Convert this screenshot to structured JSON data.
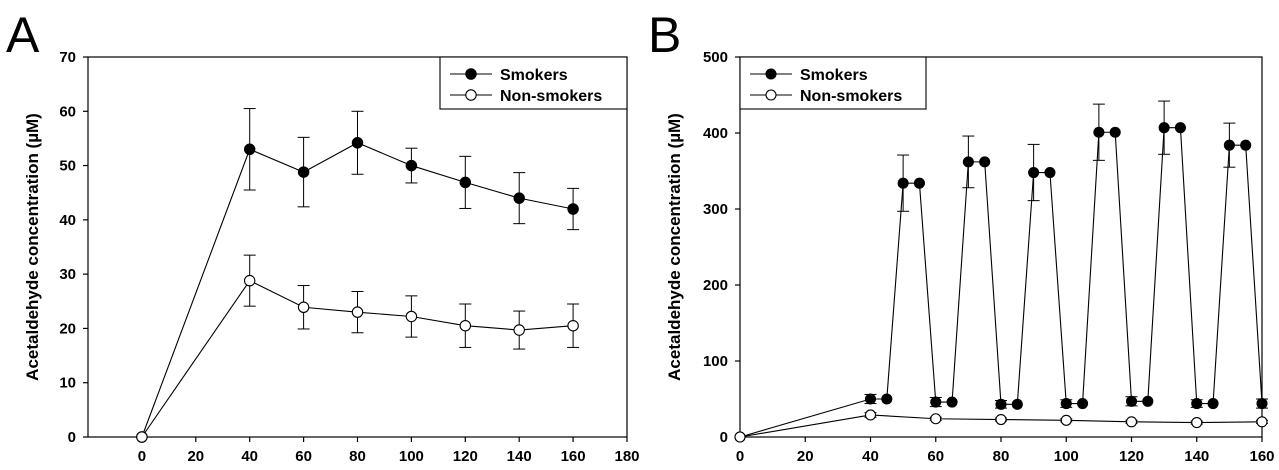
{
  "chart_data": [
    {
      "panel": "A",
      "type": "line",
      "title": "",
      "xlabel": "",
      "ylabel": "Acetaldehyde concentration (µM)",
      "xlim": [
        -20,
        180
      ],
      "ylim": [
        0,
        70
      ],
      "xticks": [
        0,
        20,
        40,
        60,
        80,
        100,
        120,
        140,
        160,
        180
      ],
      "yticks": [
        0,
        10,
        20,
        30,
        40,
        50,
        60,
        70
      ],
      "legend_position": "top-right",
      "grid": false,
      "series": [
        {
          "name": "Smokers",
          "marker": "filled-circle",
          "color": "#000000",
          "x": [
            0,
            40,
            60,
            80,
            100,
            120,
            140,
            160
          ],
          "y": [
            0,
            53,
            48.8,
            54.2,
            50,
            46.9,
            44,
            42
          ],
          "error": [
            0,
            7.5,
            6.4,
            5.8,
            3.2,
            4.8,
            4.7,
            3.8
          ]
        },
        {
          "name": "Non-smokers",
          "marker": "open-circle",
          "color": "#000000",
          "x": [
            0,
            40,
            60,
            80,
            100,
            120,
            140,
            160
          ],
          "y": [
            0,
            28.8,
            23.9,
            23,
            22.2,
            20.5,
            19.7,
            20.5
          ],
          "error": [
            0,
            4.7,
            4,
            3.8,
            3.8,
            4,
            3.5,
            4
          ]
        }
      ]
    },
    {
      "panel": "B",
      "type": "line",
      "title": "",
      "xlabel": "",
      "ylabel": "Acetaldehyde concentration (µM)",
      "xlim": [
        0,
        160
      ],
      "ylim": [
        0,
        500
      ],
      "xticks": [
        0,
        20,
        40,
        60,
        80,
        100,
        120,
        140,
        160
      ],
      "yticks": [
        0,
        100,
        200,
        300,
        400,
        500
      ],
      "legend_position": "top-left",
      "grid": false,
      "series": [
        {
          "name": "Smokers",
          "marker": "filled-circle",
          "color": "#000000",
          "x": [
            0,
            40,
            45,
            50,
            55,
            60,
            65,
            70,
            75,
            80,
            85,
            90,
            95,
            100,
            105,
            110,
            115,
            120,
            125,
            130,
            135,
            140,
            145,
            150,
            155,
            160
          ],
          "y": [
            0,
            50,
            50,
            334,
            334,
            46,
            46,
            362,
            362,
            43,
            43,
            348,
            348,
            44,
            44,
            401,
            401,
            47,
            47,
            407,
            407,
            44,
            44,
            384,
            384,
            44
          ],
          "error": [
            0,
            6,
            0,
            37,
            0,
            6,
            0,
            34,
            0,
            5,
            0,
            37,
            0,
            5,
            0,
            37,
            0,
            6,
            0,
            35,
            0,
            5,
            0,
            29,
            0,
            6
          ]
        },
        {
          "name": "Non-smokers",
          "marker": "open-circle",
          "color": "#000000",
          "x": [
            0,
            40,
            60,
            80,
            100,
            120,
            140,
            160
          ],
          "y": [
            0,
            29,
            24,
            23,
            22,
            20,
            19,
            20
          ],
          "error": [
            0,
            3,
            2,
            2,
            2,
            2,
            2,
            2
          ]
        }
      ]
    }
  ]
}
